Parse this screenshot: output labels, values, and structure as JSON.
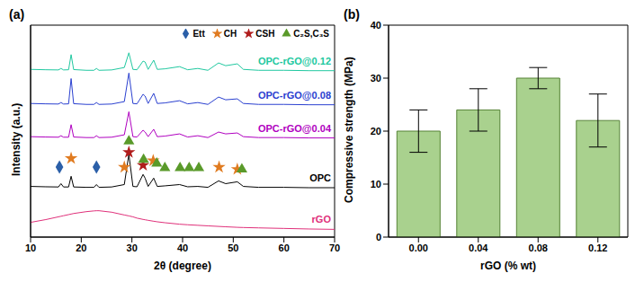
{
  "chart_data": [
    {
      "type": "line",
      "title": "(a)",
      "x_label": "2θ (degree)",
      "y_label": "Intensity (a.u.)",
      "x": [
        10,
        13,
        15.5,
        16,
        16.5,
        17.5,
        18,
        18.5,
        21,
        22.5,
        23,
        23.5,
        26,
        28.5,
        29.4,
        30.2,
        31,
        32.2,
        32.6,
        33.2,
        34.3,
        35,
        36.5,
        39.4,
        41,
        43,
        45,
        47.1,
        48.5,
        50.8,
        52,
        55,
        60,
        65,
        70
      ],
      "series": [
        {
          "name": "rGO",
          "color": "#e0307a",
          "values": [
            8,
            9.5,
            11,
            11.3,
            11.6,
            12.2,
            12.5,
            12.8,
            13.8,
            14.2,
            14.3,
            14.3,
            13.5,
            12,
            11.5,
            11,
            10.3,
            9.6,
            9.4,
            9.1,
            8.6,
            8.3,
            7.8,
            7,
            6.7,
            6.4,
            6.1,
            5.8,
            5.6,
            5.3,
            5.2,
            5,
            4.7,
            4.4,
            4.2
          ]
        },
        {
          "name": "OPC",
          "color": "#000000",
          "values": [
            27.5,
            27.3,
            27.2,
            29,
            27.2,
            27.2,
            33,
            27.2,
            27,
            27,
            28.5,
            27,
            27.2,
            28.5,
            45,
            27.5,
            27.3,
            34,
            32,
            27.5,
            32,
            27.5,
            27.8,
            28.5,
            27.3,
            27.5,
            27,
            30.5,
            29,
            30,
            27.5,
            27,
            27,
            26.8,
            26.8
          ]
        },
        {
          "name": "OPC-rGO@0.04",
          "color": "#b000c0",
          "values": [
            54.5,
            54.3,
            54.2,
            55,
            54.2,
            54.2,
            61,
            54.3,
            54,
            54,
            55,
            54,
            54.2,
            55.5,
            68,
            54.5,
            54.3,
            58,
            57,
            54.5,
            58.5,
            54.5,
            54.8,
            56,
            54.3,
            55,
            54,
            57,
            56,
            56.5,
            54.5,
            54,
            54,
            53.8,
            53.8
          ]
        },
        {
          "name": "OPC-rGO@0.08",
          "color": "#2a40d0",
          "values": [
            72.5,
            72.3,
            72.2,
            73,
            72.2,
            72.3,
            86,
            72.4,
            72,
            72,
            73,
            72,
            72.2,
            73.5,
            89,
            72.5,
            72.3,
            77.5,
            76.5,
            72.5,
            78,
            72.5,
            72.8,
            74,
            72.3,
            73,
            72,
            76,
            74.5,
            75,
            72.5,
            72,
            72,
            71.8,
            71.8
          ]
        },
        {
          "name": "OPC-rGO@0.12",
          "color": "#20c8a0",
          "values": [
            91,
            90.8,
            90.7,
            91.5,
            90.7,
            90.8,
            99,
            90.9,
            90.5,
            90.5,
            91.5,
            90.5,
            90.7,
            92,
            100,
            91,
            90.8,
            95.5,
            95,
            91,
            96,
            91,
            91.3,
            92.5,
            90.8,
            91.5,
            90.5,
            94.5,
            93,
            94,
            91,
            90.5,
            90.5,
            90.3,
            90.3
          ]
        }
      ],
      "markers": [
        {
          "name": "Ett",
          "color": "#2b5fa8",
          "marker": "diamond",
          "points": [
            {
              "x": 15.7,
              "y": 38
            },
            {
              "x": 23,
              "y": 38
            }
          ]
        },
        {
          "name": "CH",
          "color": "#e07b20",
          "marker": "star",
          "points": [
            {
              "x": 18,
              "y": 42.7
            },
            {
              "x": 28.5,
              "y": 38
            },
            {
              "x": 34.2,
              "y": 41.5
            },
            {
              "x": 47.2,
              "y": 38
            },
            {
              "x": 50.8,
              "y": 36.8
            }
          ]
        },
        {
          "name": "CSH",
          "color": "#b01c1c",
          "marker": "star",
          "points": [
            {
              "x": 29.4,
              "y": 46
            },
            {
              "x": 32.2,
              "y": 39
            }
          ]
        },
        {
          "name": "C₂S,C₃S",
          "color": "#5a9a2a",
          "marker": "triangle",
          "points": [
            {
              "x": 29.4,
              "y": 52
            },
            {
              "x": 32.3,
              "y": 42
            },
            {
              "x": 34.9,
              "y": 40
            },
            {
              "x": 36.5,
              "y": 37.5
            },
            {
              "x": 39.5,
              "y": 37.5
            },
            {
              "x": 41.3,
              "y": 37.5
            },
            {
              "x": 43.2,
              "y": 37.5
            },
            {
              "x": 51.7,
              "y": 36.8
            }
          ]
        }
      ],
      "xlim": [
        10,
        70
      ],
      "xticks": [
        10,
        20,
        30,
        40,
        50,
        60,
        70
      ],
      "ylim": [
        0,
        115
      ],
      "tick_labels": "x",
      "legend": "upper right"
    },
    {
      "type": "bar",
      "title": "(b)",
      "x_label": "rGO (% wt)",
      "y_label": "Compressive strength (MPa)",
      "categories": [
        "0.00",
        "0.04",
        "0.08",
        "0.12"
      ],
      "values": [
        20,
        24,
        30,
        22
      ],
      "errors": [
        4,
        4,
        2,
        5
      ],
      "color": "#a9d18e",
      "ylim": [
        0,
        40
      ],
      "yticks": [
        0,
        10,
        20,
        30,
        40
      ]
    }
  ]
}
